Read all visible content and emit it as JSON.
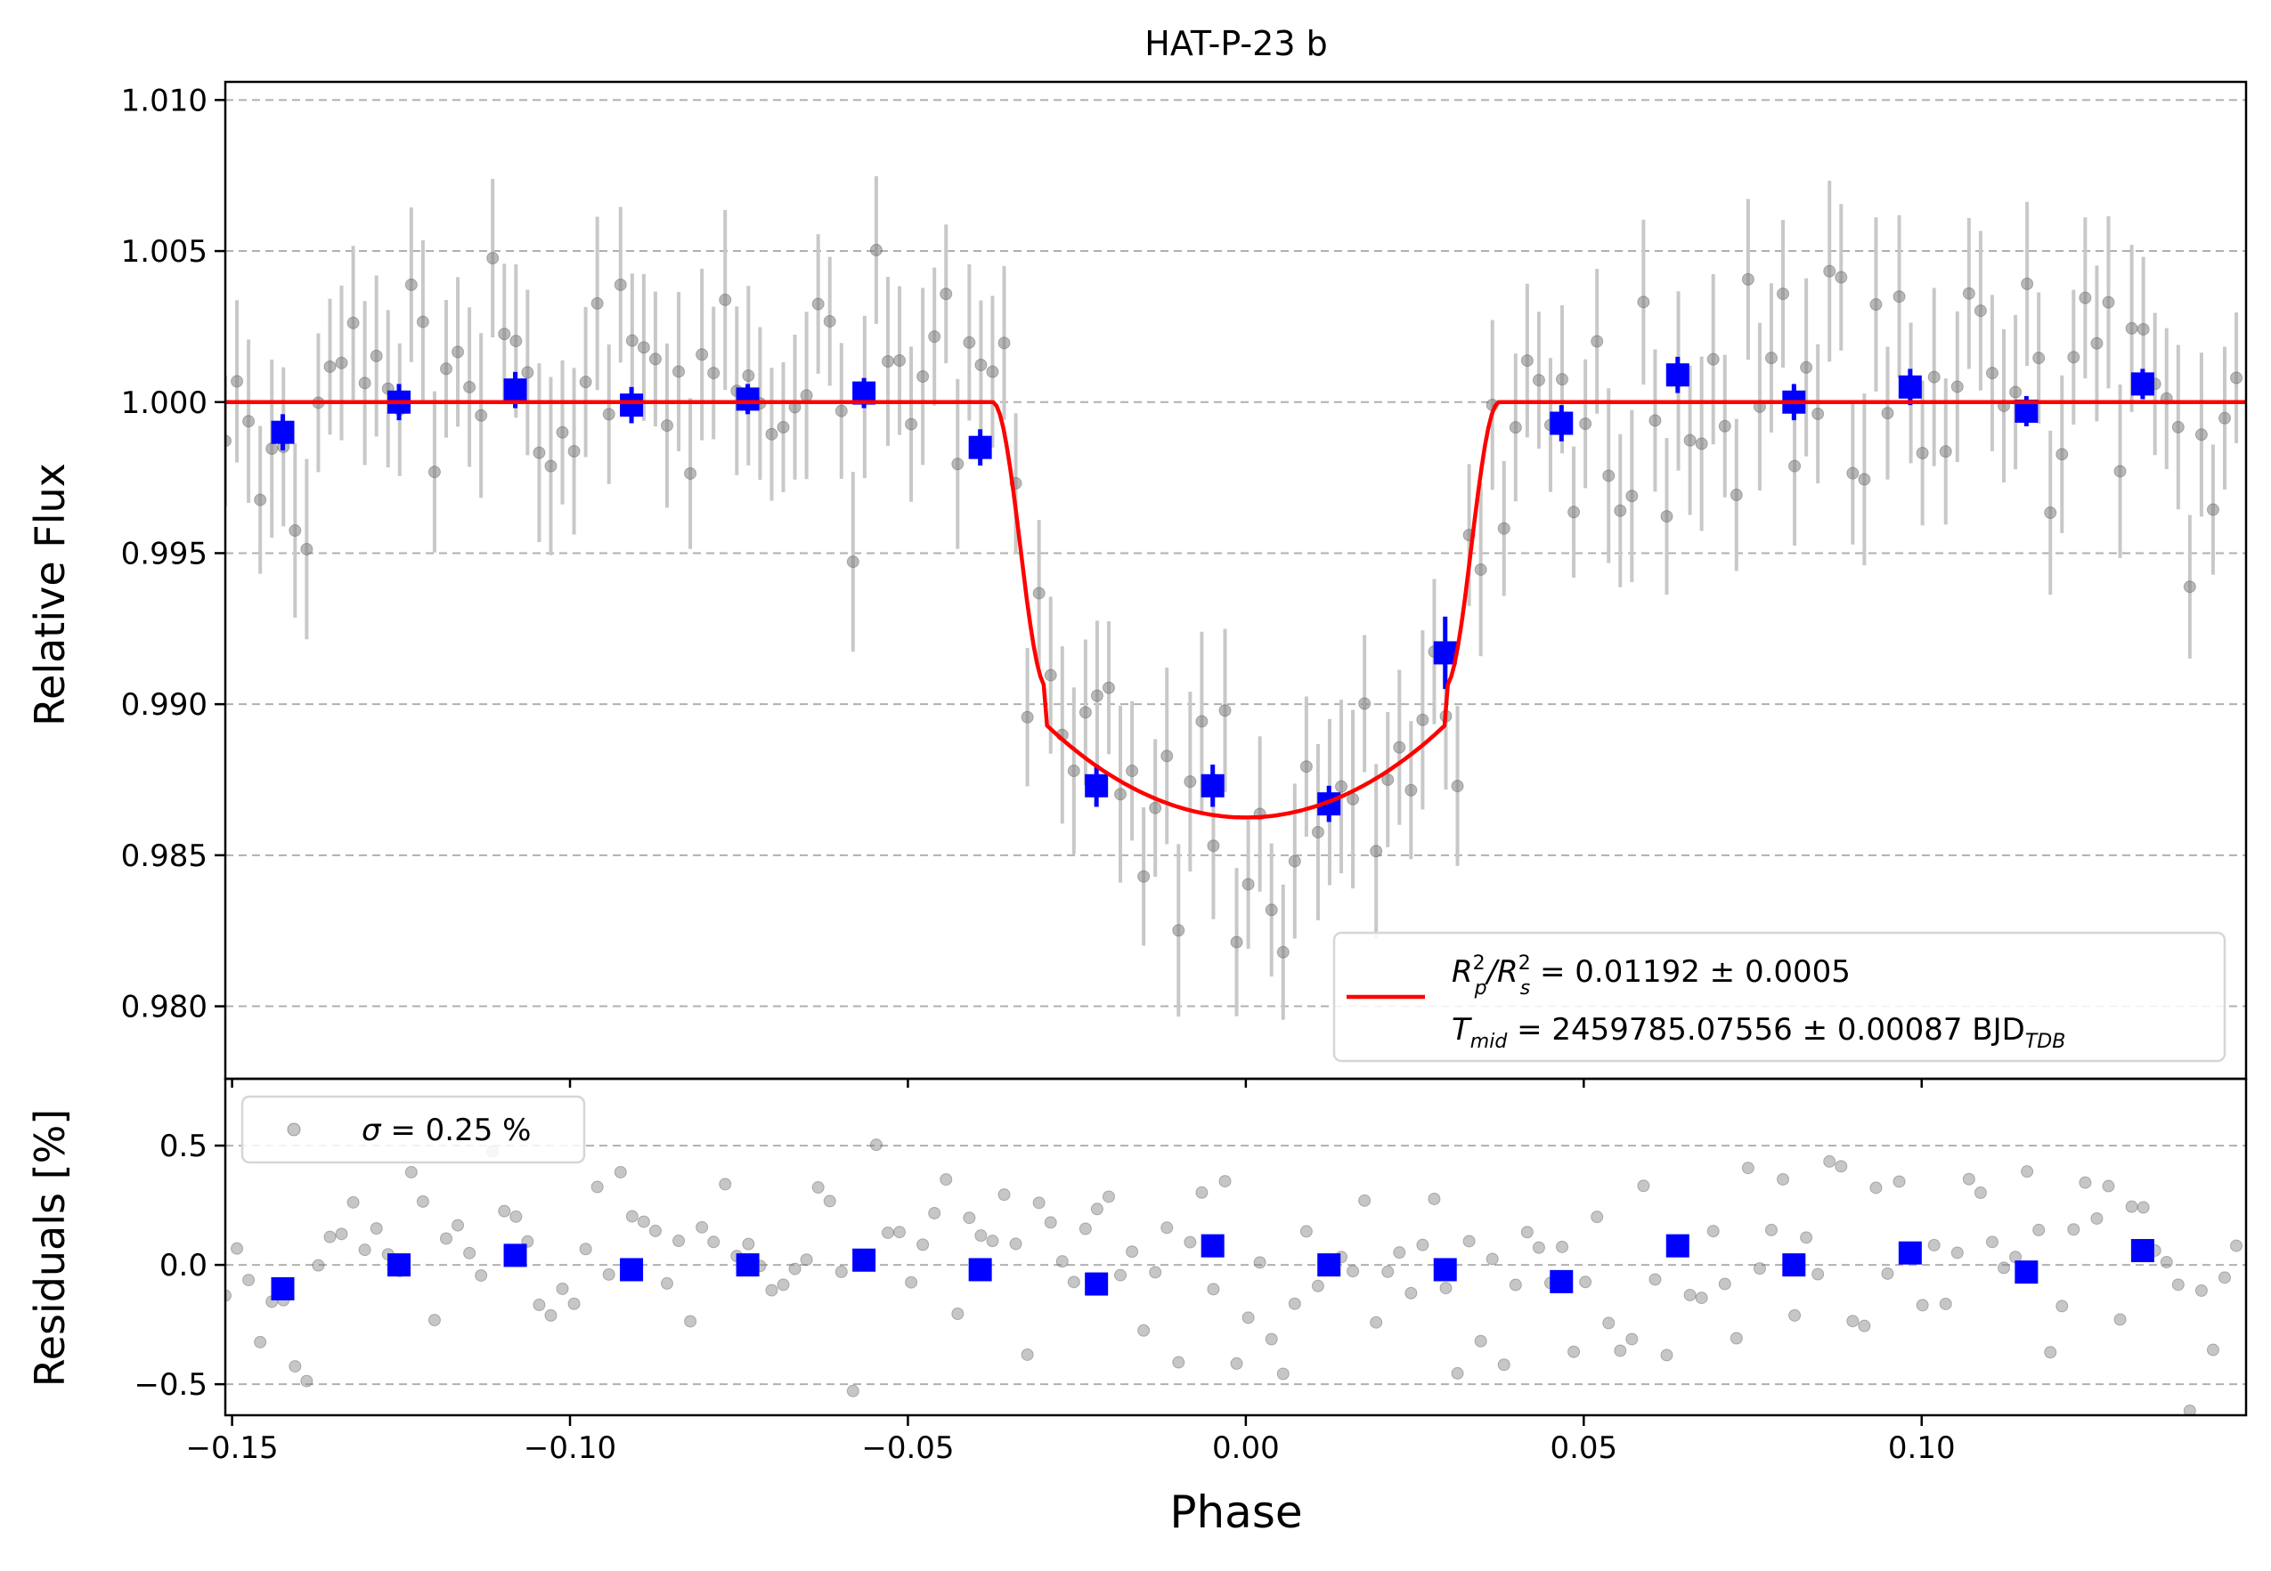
{
  "chart_data": [
    {
      "type": "scatter",
      "panel": "light-curve",
      "title": "HAT-P-23 b",
      "xlabel": "",
      "ylabel": "Relative Flux",
      "xlim": [
        -0.151,
        0.148
      ],
      "ylim": [
        0.9776,
        1.0106
      ],
      "grid": "horizontal-dashed",
      "yticks": [
        0.98,
        0.985,
        0.99,
        0.995,
        1.0,
        1.005,
        1.01
      ],
      "ytick_labels": [
        "0.980",
        "0.985",
        "0.990",
        "0.995",
        "1.000",
        "1.005",
        "1.010"
      ],
      "legend": {
        "placement": "lower-right",
        "line1_main": "R",
        "line1_sub1": "p",
        "line1_sup1": "2",
        "line1_sep": "/R",
        "line1_sub2": "s",
        "line1_sup2": "2",
        "line1_rest": " = 0.01192 ± 0.0005",
        "line2_main": "T",
        "line2_sub": "mid",
        "line2_rest": " = 2459785.07556 ± 0.00087 BJD",
        "line2_unit_sub": "TDB"
      },
      "model": {
        "color": "#ff0000",
        "depth": 0.01375,
        "baseline": 1.0,
        "t1": 0.0375,
        "t2": 0.0295,
        "limb_u": 0.7
      },
      "binned": {
        "color": "#0000ff",
        "x": [
          -0.1425,
          -0.1253,
          -0.1081,
          -0.0909,
          -0.0737,
          -0.0565,
          -0.0393,
          -0.0221,
          -0.0049,
          0.0123,
          0.0295,
          0.0467,
          0.0639,
          0.0811,
          0.0983,
          0.1155,
          0.1327
        ],
        "y": [
          0.999,
          1.0,
          1.0004,
          0.9999,
          1.0001,
          1.0003,
          0.9985,
          0.9873,
          0.9873,
          0.9867,
          0.9917,
          0.9993,
          1.0009,
          1.0,
          1.0005,
          0.9997,
          1.0006
        ],
        "err": [
          0.0006,
          0.0006,
          0.0006,
          0.0006,
          0.0005,
          0.0005,
          0.0006,
          0.0007,
          0.0007,
          0.0006,
          0.0012,
          0.0006,
          0.0006,
          0.0006,
          0.0006,
          0.0005,
          0.0005
        ]
      },
      "raw": {
        "color": "#808080",
        "error_color": "#c8c8c8",
        "x_start": -0.151,
        "x_step": 0.00172,
        "count": 174,
        "typical_err": 0.0025,
        "noise_sigma": 0.0025
      }
    },
    {
      "type": "scatter",
      "panel": "residuals",
      "xlabel": "Phase",
      "ylabel": "Residuals [%]",
      "xlim": [
        -0.151,
        0.148
      ],
      "ylim": [
        -0.63,
        0.78
      ],
      "grid": "horizontal-dashed",
      "xticks": [
        -0.15,
        -0.1,
        -0.05,
        0.0,
        0.05,
        0.1
      ],
      "xtick_labels": [
        "−0.15",
        "−0.10",
        "−0.05",
        "0.00",
        "0.05",
        "0.10"
      ],
      "yticks": [
        -0.5,
        0.0,
        0.5
      ],
      "ytick_labels": [
        "−0.5",
        "0.0",
        "0.5"
      ],
      "legend": {
        "placement": "upper-left",
        "label_sym": "σ",
        "label_rest": " = 0.25 %"
      },
      "binned": {
        "color": "#0000ff",
        "y": [
          -0.1,
          0.0,
          0.04,
          -0.02,
          0.0,
          0.02,
          -0.02,
          -0.08,
          0.08,
          0.0,
          -0.02,
          -0.07,
          0.08,
          0.0,
          0.05,
          -0.03,
          0.06
        ]
      },
      "raw": {
        "color": "#808080",
        "sigma": 0.25
      }
    }
  ]
}
